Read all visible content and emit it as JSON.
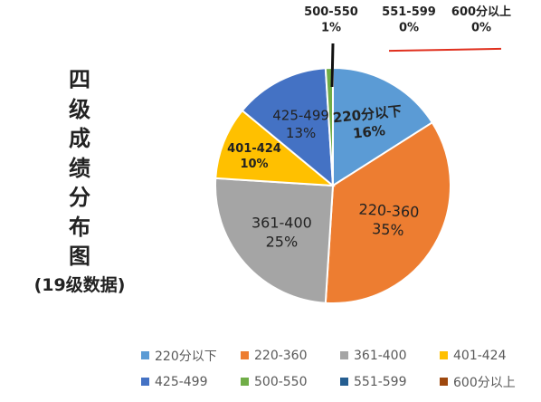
{
  "side_title": {
    "chars": [
      "四",
      "级",
      "成",
      "绩",
      "分",
      "布",
      "图"
    ],
    "subtitle": "(19级数据)"
  },
  "chart_data": {
    "type": "pie",
    "slices": [
      {
        "label": "220分以下",
        "value": 16,
        "color": "#5b9bd5"
      },
      {
        "label": "220-360",
        "value": 35,
        "color": "#ed7d31"
      },
      {
        "label": "361-400",
        "value": 25,
        "color": "#a5a5a5"
      },
      {
        "label": "401-424",
        "value": 10,
        "color": "#ffc000"
      },
      {
        "label": "425-499",
        "value": 13,
        "color": "#4472c4"
      },
      {
        "label": "500-550",
        "value": 1,
        "color": "#70ad47"
      },
      {
        "label": "551-599",
        "value": 0,
        "color": "#255e91"
      },
      {
        "label": "600分以上",
        "value": 0,
        "color": "#9e480e"
      }
    ],
    "value_suffix": "%",
    "legend_position": "bottom"
  }
}
